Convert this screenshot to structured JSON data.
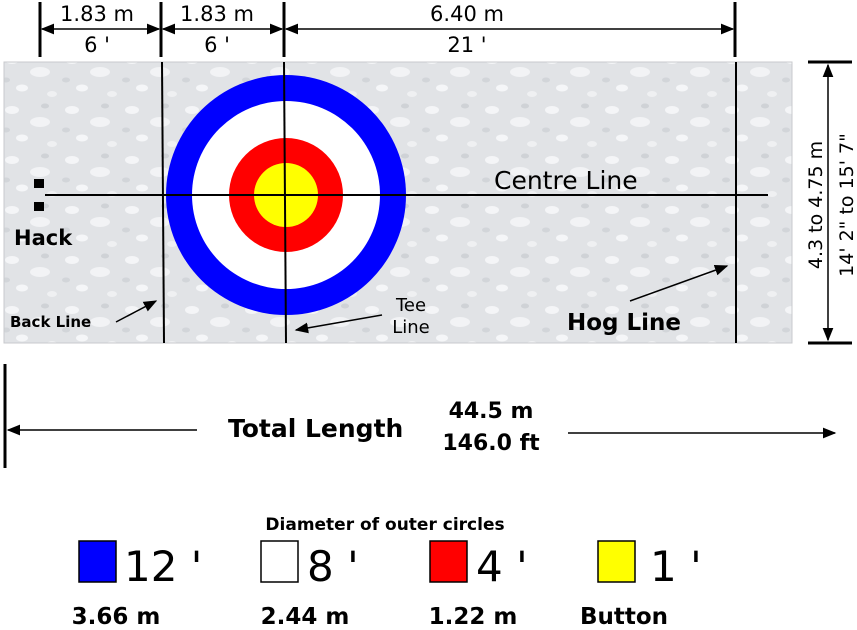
{
  "dimensions": {
    "back_to_hog_left_m": "1.83 m",
    "back_to_hog_left_ft": "6 '",
    "tee_to_back_m": "1.83 m",
    "tee_to_back_ft": "6 '",
    "tee_to_hog_m": "6.40 m",
    "tee_to_hog_ft": "21 '",
    "width_m": "4.3 to 4.75 m",
    "width_ft": "14' 2\" to 15' 7\""
  },
  "labels": {
    "centre_line": "Centre Line",
    "hack": "Hack",
    "back_line": "Back Line",
    "tee_line_1": "Tee",
    "tee_line_2": "Line",
    "hog_line": "Hog Line"
  },
  "total": {
    "label": "Total Length",
    "metres": "44.5 m",
    "feet": "146.0 ft"
  },
  "legend": {
    "title": "Diameter of outer circles",
    "items": [
      {
        "color": "#0000ff",
        "feet": "12 '",
        "metric": "3.66 m"
      },
      {
        "color": "#ffffff",
        "feet": "8 '",
        "metric": "2.44 m"
      },
      {
        "color": "#ff0000",
        "feet": "4 '",
        "metric": "1.22 m"
      },
      {
        "color": "#ffff00",
        "feet": "1 '",
        "metric": "Button"
      }
    ]
  },
  "colors": {
    "ice": "#e2e4e7",
    "blue": "#0000ff",
    "white": "#ffffff",
    "red": "#ff0000",
    "yellow": "#ffff00"
  }
}
